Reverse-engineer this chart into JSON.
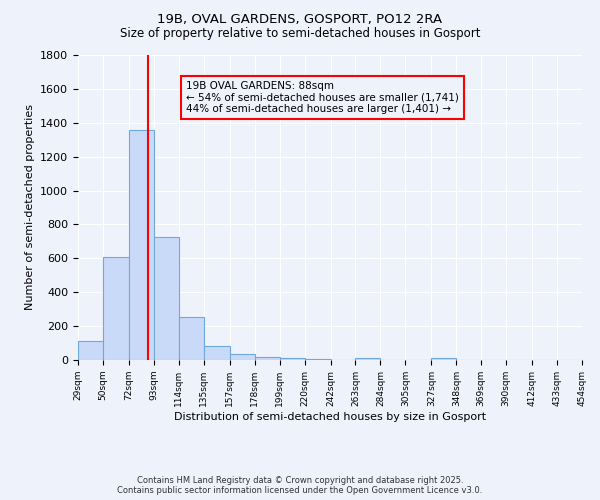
{
  "title1": "19B, OVAL GARDENS, GOSPORT, PO12 2RA",
  "title2": "Size of property relative to semi-detached houses in Gosport",
  "xlabel": "Distribution of semi-detached houses by size in Gosport",
  "ylabel": "Number of semi-detached properties",
  "bin_edges": [
    29,
    50,
    72,
    93,
    114,
    135,
    157,
    178,
    199,
    220,
    242,
    263,
    284,
    305,
    327,
    348,
    369,
    390,
    412,
    433,
    454
  ],
  "bar_heights": [
    110,
    610,
    1360,
    725,
    255,
    80,
    38,
    20,
    10,
    5,
    2,
    10,
    0,
    0,
    10,
    0,
    0,
    0,
    0,
    0
  ],
  "bar_color": "#c9daf8",
  "bar_edge_color": "#6fa8dc",
  "red_line_x": 88,
  "ylim": [
    0,
    1800
  ],
  "yticks": [
    0,
    200,
    400,
    600,
    800,
    1000,
    1200,
    1400,
    1600,
    1800
  ],
  "xtick_labels": [
    "29sqm",
    "50sqm",
    "72sqm",
    "93sqm",
    "114sqm",
    "135sqm",
    "157sqm",
    "178sqm",
    "199sqm",
    "220sqm",
    "242sqm",
    "263sqm",
    "284sqm",
    "305sqm",
    "327sqm",
    "348sqm",
    "369sqm",
    "390sqm",
    "412sqm",
    "433sqm",
    "454sqm"
  ],
  "annotation_title": "19B OVAL GARDENS: 88sqm",
  "annotation_line1": "← 54% of semi-detached houses are smaller (1,741)",
  "annotation_line2": "44% of semi-detached houses are larger (1,401) →",
  "footer1": "Contains HM Land Registry data © Crown copyright and database right 2025.",
  "footer2": "Contains public sector information licensed under the Open Government Licence v3.0.",
  "bg_color": "#eef2fb",
  "grid_color": "#ffffff"
}
